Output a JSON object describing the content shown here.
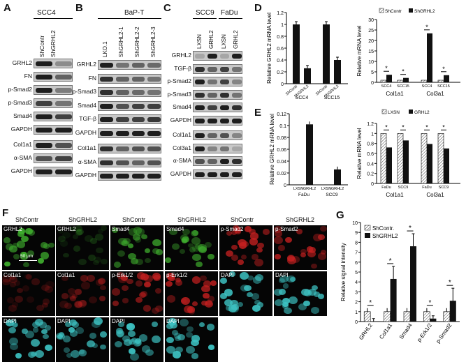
{
  "panels": {
    "a": "A",
    "b": "B",
    "c": "C",
    "d": "D",
    "e": "E",
    "f": "F",
    "g": "G"
  },
  "panel_a": {
    "cell_line": "SCC4",
    "lanes": [
      "ShContr",
      "ShGRHL2"
    ],
    "rows": [
      "GRHL2",
      "FN",
      "p-Smad2",
      "p-Smad3",
      "Smad4",
      "GAPDH",
      "Col1a1",
      "α-SMA",
      "GAPDH"
    ]
  },
  "panel_b": {
    "cell_line": "BaP-T",
    "lanes": [
      "LKO.1",
      "ShGRHL2-1",
      "ShGRHL2-2",
      "ShGRHL2-3"
    ],
    "rows": [
      "GRHL2",
      "FN",
      "p-Smad3",
      "Smad4",
      "TGF-β",
      "GAPDH",
      "Col1a1",
      "α-SMA",
      "GAPDH"
    ]
  },
  "panel_c": {
    "groups": [
      "SCC9",
      "FaDu"
    ],
    "lanes": [
      "LXSN",
      "GRHL2",
      "LXSN",
      "GRHL2"
    ],
    "rows": [
      "GRHL2",
      "TGF-β",
      "p-Smad2",
      "p-Smad3",
      "Smad4",
      "GAPDH",
      "Col1a1",
      "Col3a1",
      "α-SMA",
      "GAPDH"
    ]
  },
  "colors": {
    "dark": "#111111",
    "hatch": "#ffffff",
    "green": "#3fae2e",
    "red": "#c42020",
    "cyan": "#3dc2c2"
  },
  "micro": {
    "headers": [
      "ShContr",
      "ShGRHL2",
      "ShContr",
      "ShGRHL2",
      "ShContr",
      "ShGRHL2"
    ],
    "scalebar": "50 μm",
    "rows": [
      [
        "GRHL2",
        "GRHL2",
        "Smad4",
        "Smad4",
        "p-Smad2",
        "p-Smad2"
      ],
      [
        "Col1a1",
        "Col1a1",
        "p-Erk1/2",
        "p-Erk1/2",
        "DAPI",
        "DAPI"
      ],
      [
        "DAPI",
        "DAPI",
        "DAPI",
        "DAPI",
        "",
        ""
      ]
    ]
  },
  "chart_data": [
    {
      "panel": "D",
      "type": "bar",
      "ylabel": "Relative GRHL2 mRNA level",
      "yticks": [
        "0",
        "0.2",
        "0.4",
        "0.6",
        "0.8",
        "1",
        "1.2"
      ],
      "ylim": [
        0,
        1.2
      ],
      "x": [
        "ShContr",
        "ShGRHL2",
        "ShContr",
        "ShGRHL2"
      ],
      "groups": [
        "SCC4",
        "SCC15"
      ],
      "values": [
        1.0,
        0.26,
        1.0,
        0.4
      ]
    },
    {
      "panel": "D",
      "type": "bar",
      "ylabel": "Relative mRNA level",
      "yticks": [
        "0",
        "5",
        "10",
        "15",
        "20",
        "25",
        "30"
      ],
      "ylim": [
        0,
        30
      ],
      "legend": [
        "ShContr",
        "ShGRHL2"
      ],
      "cells": [
        "SCC4",
        "SCC15",
        "SCC4",
        "SCC15"
      ],
      "genes": [
        "Col1a1",
        "Col3a1"
      ],
      "series": [
        {
          "name": "ShContr",
          "values": [
            1,
            1,
            1,
            1
          ]
        },
        {
          "name": "ShGRHL2",
          "values": [
            3.6,
            2.1,
            23.4,
            3.4
          ]
        }
      ],
      "annotations": [
        "*",
        "*",
        "*",
        "*"
      ]
    },
    {
      "panel": "E",
      "type": "bar",
      "ylabel": "Relative GRHL2 mRNA level",
      "yticks": [
        "0",
        "0.02",
        "0.04",
        "0.06",
        "0.08",
        "0.1",
        "0.12"
      ],
      "ylim": [
        0,
        0.12
      ],
      "x": [
        "LXSN",
        "GRHL2",
        "LXSN",
        "GRHL2"
      ],
      "groups": [
        "FaDu",
        "SCC9"
      ],
      "values": [
        0,
        0.102,
        0,
        0.026
      ]
    },
    {
      "panel": "E",
      "type": "bar",
      "ylabel": "Relative mRNA level",
      "yticks": [
        "0",
        "0.2",
        "0.4",
        "0.6",
        "0.8",
        "1",
        "1.2"
      ],
      "ylim": [
        0,
        1.2
      ],
      "legend": [
        "LXSN",
        "GRHL2"
      ],
      "cells": [
        "FaDu",
        "SCC9",
        "FaDu",
        "SCC9"
      ],
      "genes": [
        "Col1a1",
        "Col3a1"
      ],
      "series": [
        {
          "name": "LXSN",
          "values": [
            1,
            1,
            1,
            1
          ]
        },
        {
          "name": "GRHL2",
          "values": [
            0.72,
            0.86,
            0.79,
            0.7
          ]
        }
      ],
      "annotations": [
        "*",
        "*",
        "*",
        "*"
      ]
    },
    {
      "panel": "G",
      "type": "bar",
      "ylabel": "Relative signal intensity",
      "yticks": [
        "0",
        "1",
        "2",
        "3",
        "4",
        "5",
        "6",
        "7",
        "8",
        "9",
        "10"
      ],
      "ylim": [
        0,
        10
      ],
      "legend": [
        "ShContr.",
        "ShGRHL2"
      ],
      "categories": [
        "GRHL2",
        "Col1a1",
        "Smad4",
        "p-Erk1/2",
        "p-Smad2"
      ],
      "series": [
        {
          "name": "ShContr.",
          "values": [
            1,
            1,
            1,
            1,
            1
          ]
        },
        {
          "name": "ShGRHL2",
          "values": [
            0.02,
            4.3,
            7.6,
            0.3,
            2.1
          ]
        }
      ],
      "annotations": [
        "*",
        "*",
        "*",
        "*",
        "*"
      ]
    }
  ]
}
